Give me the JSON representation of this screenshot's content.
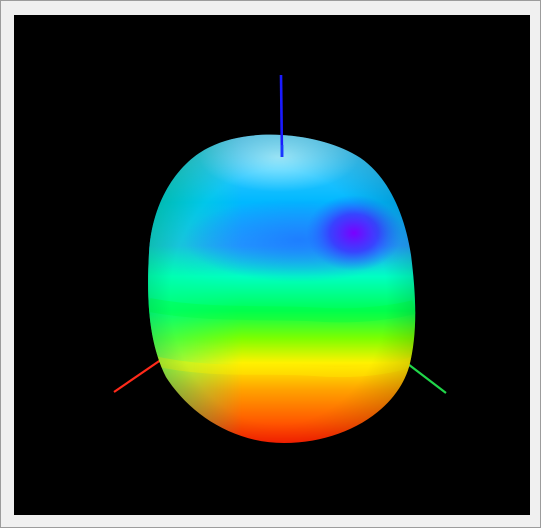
{
  "window": {
    "frame_color": "#f0f0f0",
    "border_color": "#9c9c9c"
  },
  "viewport": {
    "background": "#000000",
    "content": "3d-surface-plot",
    "axes": [
      {
        "name": "x-axis",
        "color": "#ff2a1a"
      },
      {
        "name": "y-axis",
        "color": "#21d64a"
      },
      {
        "name": "z-axis",
        "color": "#1a1aff"
      }
    ],
    "colormap": [
      "#ff1e00",
      "#ff6a00",
      "#ffd200",
      "#9cff00",
      "#00ff40",
      "#00ffc8",
      "#00c8ff",
      "#1e7aff",
      "#3a2cff",
      "#7a00ff"
    ]
  }
}
